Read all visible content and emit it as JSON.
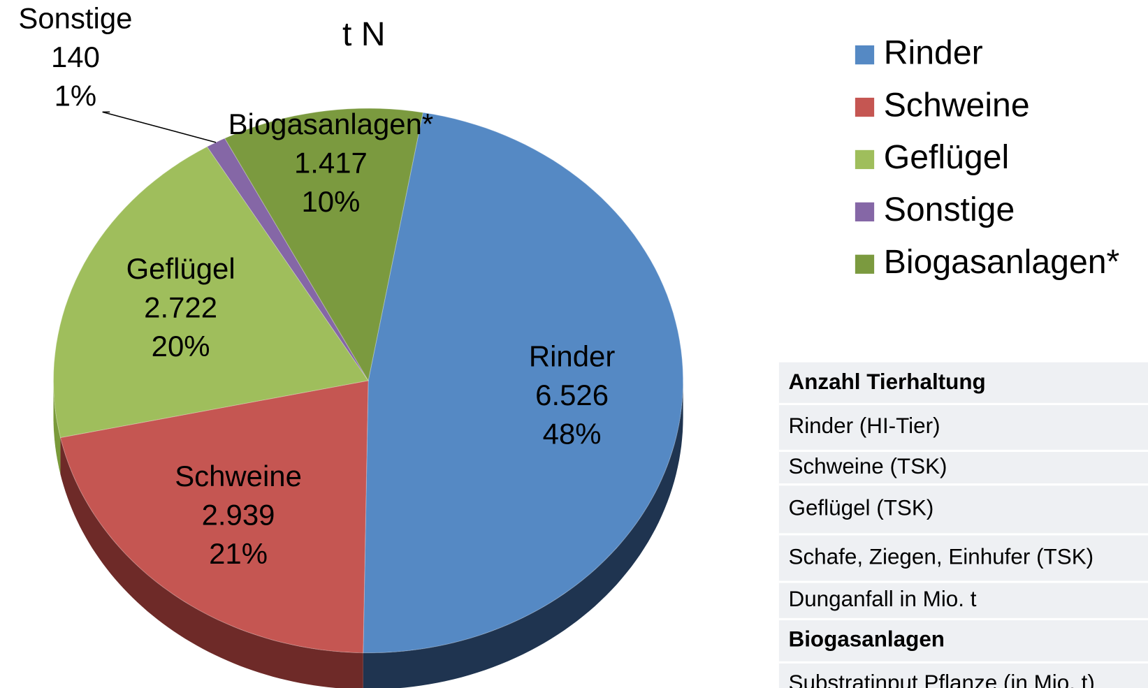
{
  "chart_data": {
    "type": "pie",
    "title": "t N",
    "categories": [
      "Rinder",
      "Schweine",
      "Geflügel",
      "Sonstige",
      "Biogasanlagen*"
    ],
    "values": [
      6526,
      2939,
      2722,
      140,
      1417
    ],
    "value_labels": [
      "6.526",
      "2.939",
      "2.722",
      "140",
      "1.417"
    ],
    "percentages": [
      48,
      21,
      20,
      1,
      10
    ],
    "percentage_labels": [
      "48%",
      "21%",
      "20%",
      "1%",
      "10%"
    ],
    "colors": [
      "#5589c4",
      "#c55652",
      "#9fbe5c",
      "#8567a6",
      "#7b9a3f"
    ],
    "side_colors": [
      "#1f3450",
      "#6e2a28",
      "#7a9a3a",
      "#5a4475",
      "#55702a"
    ],
    "legend": "right"
  },
  "table": {
    "rows": [
      {
        "label": "Anzahl Tierhaltung",
        "bold": true
      },
      {
        "label": "Rinder (HI-Tier)",
        "bold": false
      },
      {
        "label": "Schweine (TSK)",
        "bold": false
      },
      {
        "label": "Geflügel (TSK)",
        "bold": false
      },
      {
        "label": "Schafe, Ziegen, Einhufer (TSK)",
        "bold": false
      },
      {
        "label": "Dunganfall in Mio. t",
        "bold": false
      },
      {
        "label": "Biogasanlagen",
        "bold": true
      },
      {
        "label": "Substratinput Pflanze (in Mio. t)",
        "bold": false
      }
    ]
  }
}
